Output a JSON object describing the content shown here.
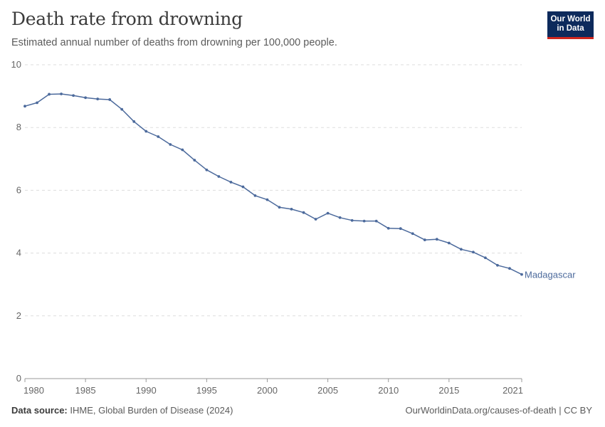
{
  "header": {
    "title": "Death rate from drowning",
    "subtitle": "Estimated annual number of deaths from drowning per 100,000 people."
  },
  "logo": {
    "line1": "Our World",
    "line2": "in Data",
    "bg_color": "#0d2a5c",
    "accent_color": "#ce261e"
  },
  "footer": {
    "source_label": "Data source:",
    "source_text": "IHME, Global Burden of Disease (2024)",
    "url_text": "OurWorldinData.org/causes-of-death | CC BY"
  },
  "colors": {
    "series": "#4c6a9c",
    "grid": "#dddddd",
    "text": "#666666"
  },
  "chart_data": {
    "type": "line",
    "title": "Death rate from drowning",
    "xlim": [
      1980,
      2021
    ],
    "ylim": [
      0,
      10
    ],
    "x_ticks": [
      1980,
      1985,
      1990,
      1995,
      2000,
      2005,
      2010,
      2015,
      2021
    ],
    "y_ticks": [
      0,
      2,
      4,
      6,
      8,
      10
    ],
    "grid": true,
    "series": [
      {
        "name": "Madagascar",
        "x": [
          1980,
          1981,
          1982,
          1983,
          1984,
          1985,
          1986,
          1987,
          1988,
          1989,
          1990,
          1991,
          1992,
          1993,
          1994,
          1995,
          1996,
          1997,
          1998,
          1999,
          2000,
          2001,
          2002,
          2003,
          2004,
          2005,
          2006,
          2007,
          2008,
          2009,
          2010,
          2011,
          2012,
          2013,
          2014,
          2015,
          2016,
          2017,
          2018,
          2019,
          2020,
          2021
        ],
        "values": [
          8.68,
          8.79,
          9.06,
          9.07,
          9.02,
          8.95,
          8.91,
          8.89,
          8.58,
          8.19,
          7.88,
          7.71,
          7.46,
          7.29,
          6.96,
          6.65,
          6.44,
          6.26,
          6.11,
          5.83,
          5.7,
          5.46,
          5.4,
          5.29,
          5.08,
          5.27,
          5.13,
          5.04,
          5.02,
          5.02,
          4.79,
          4.78,
          4.62,
          4.42,
          4.44,
          4.32,
          4.12,
          4.03,
          3.85,
          3.61,
          3.51,
          3.32
        ]
      }
    ]
  }
}
